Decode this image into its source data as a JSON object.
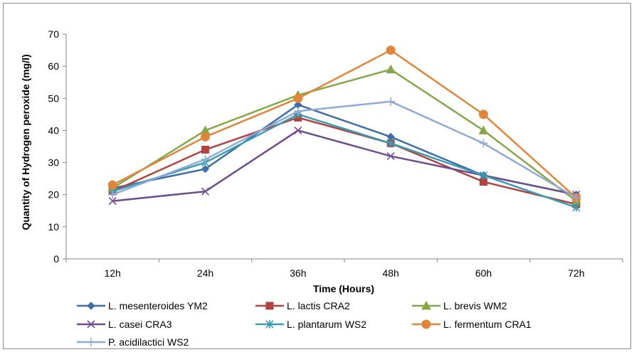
{
  "chart_data": {
    "type": "line",
    "categories": [
      "12h",
      "24h",
      "36h",
      "48h",
      "60h",
      "72h"
    ],
    "xlabel": "Time (Hours)",
    "ylabel": "Quantity of Hydrogen peroxide (mg/l)",
    "ylim": [
      0,
      70
    ],
    "yticks": [
      0,
      10,
      20,
      30,
      40,
      50,
      60,
      70
    ],
    "grid": false,
    "legend_position": "bottom",
    "series": [
      {
        "name": "L. mesenteroides YM2",
        "color": "#3e6ea8",
        "marker": "diamond",
        "values": [
          22,
          28,
          48,
          38,
          26,
          20
        ]
      },
      {
        "name": "L. lactis CRA2",
        "color": "#b14443",
        "marker": "square",
        "values": [
          21,
          34,
          44,
          36,
          24,
          17
        ]
      },
      {
        "name": "L. brevis WM2",
        "color": "#86a64a",
        "marker": "triangle",
        "values": [
          22,
          40,
          51,
          59,
          40,
          18
        ]
      },
      {
        "name": "L. casei CRA3",
        "color": "#6e4c8e",
        "marker": "x",
        "values": [
          18,
          21,
          40,
          32,
          26,
          20
        ]
      },
      {
        "name": "L. plantarum WS2",
        "color": "#3a9bb1",
        "marker": "star",
        "values": [
          21,
          30,
          45,
          36,
          26,
          16
        ]
      },
      {
        "name": "L. fermentum CRA1",
        "color": "#e0863a",
        "marker": "circle",
        "values": [
          23,
          38,
          50,
          65,
          45,
          19
        ]
      },
      {
        "name": "P. acidilactici WS2",
        "color": "#8faad3",
        "marker": "plus",
        "values": [
          20,
          31,
          46,
          49,
          36,
          19
        ]
      }
    ]
  }
}
